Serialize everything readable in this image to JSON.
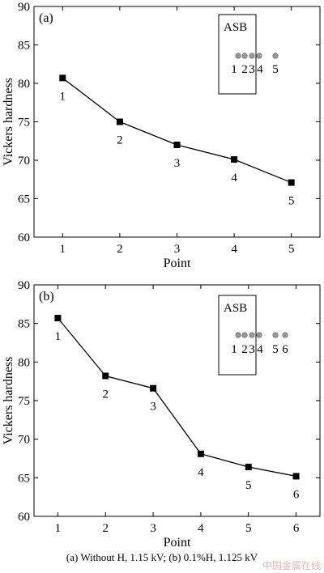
{
  "chart_data": [
    {
      "type": "line",
      "panel_label": "(a)",
      "xlabel": "Point",
      "ylabel": "Vickers hardness",
      "x": [
        1,
        2,
        3,
        4,
        5
      ],
      "xticks": [
        "1",
        "2",
        "3",
        "4",
        "5"
      ],
      "xlim": [
        0.5,
        5.5
      ],
      "ylim": [
        60,
        90
      ],
      "yticks": [
        "60",
        "65",
        "70",
        "75",
        "80",
        "85",
        "90"
      ],
      "series": [
        {
          "values": [
            80.7,
            75.0,
            72.0,
            70.1,
            67.1
          ]
        }
      ],
      "point_labels": [
        "1",
        "2",
        "3",
        "4",
        "5"
      ],
      "inset": {
        "title": "ASB",
        "labels": [
          "1",
          "2",
          "3",
          "4",
          "5"
        ]
      },
      "grid": false
    },
    {
      "type": "line",
      "panel_label": "(b)",
      "xlabel": "Point",
      "ylabel": "Vickers hardness",
      "x": [
        1,
        2,
        3,
        4,
        5,
        6
      ],
      "xticks": [
        "1",
        "2",
        "3",
        "4",
        "5",
        "6"
      ],
      "xlim": [
        0.5,
        6.5
      ],
      "ylim": [
        60,
        90
      ],
      "yticks": [
        "60",
        "65",
        "70",
        "75",
        "80",
        "85",
        "90"
      ],
      "series": [
        {
          "values": [
            85.7,
            78.2,
            76.6,
            68.1,
            66.4,
            65.2
          ]
        }
      ],
      "point_labels": [
        "1",
        "2",
        "3",
        "4",
        "5",
        "6"
      ],
      "inset": {
        "title": "ASB",
        "labels": [
          "1",
          "2",
          "3",
          "4",
          "5",
          "6"
        ]
      },
      "grid": false
    }
  ],
  "caption": "(a) Without H, 1.15 kV; (b) 0.1%H, 1.125 kV",
  "watermark": "中国金属在线",
  "colors": {
    "line": "#000000",
    "marker": "#000000",
    "inset_dot": "#9a9a9a"
  }
}
